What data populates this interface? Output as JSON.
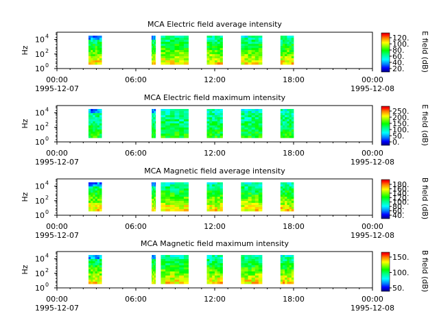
{
  "chart_data": [
    {
      "type": "heatmap",
      "title": "MCA  Electric field average intensity",
      "ylabel": "Hz",
      "y_scale": "log",
      "y_ticks": [
        {
          "base": "10",
          "exp": "0"
        },
        {
          "base": "10",
          "exp": "2"
        },
        {
          "base": "10",
          "exp": "4"
        }
      ],
      "x_ticks": [
        "00:00",
        "06:00",
        "12:00",
        "18:00",
        "00:00"
      ],
      "x_dates": [
        "1995-12-07",
        "1995-12-08"
      ],
      "colorbar_label": "E field (dB)",
      "colorbar_ticks": [
        "20.",
        "40.",
        "60.",
        "80.",
        "100.",
        "120."
      ],
      "data_blocks_hours": [
        [
          2.4,
          3.4
        ],
        [
          7.2,
          7.5
        ],
        [
          7.9,
          10.0
        ],
        [
          11.4,
          12.6
        ],
        [
          14.0,
          15.6
        ],
        [
          17.0,
          18.0
        ]
      ],
      "low_band_level": "high"
    },
    {
      "type": "heatmap",
      "title": "MCA  Electric field maximum intensity",
      "ylabel": "Hz",
      "y_scale": "log",
      "y_ticks": [
        {
          "base": "10",
          "exp": "0"
        },
        {
          "base": "10",
          "exp": "2"
        },
        {
          "base": "10",
          "exp": "4"
        }
      ],
      "x_ticks": [
        "00:00",
        "06:00",
        "12:00",
        "18:00",
        "00:00"
      ],
      "x_dates": [
        "1995-12-07",
        "1995-12-08"
      ],
      "colorbar_label": "E field (dB)",
      "colorbar_ticks": [
        "0.",
        "50.",
        "100.",
        "150.",
        "200.",
        "250."
      ],
      "data_blocks_hours": [
        [
          2.4,
          3.4
        ],
        [
          7.2,
          7.5
        ],
        [
          7.9,
          10.0
        ],
        [
          11.4,
          12.6
        ],
        [
          14.0,
          15.6
        ],
        [
          17.0,
          18.0
        ]
      ],
      "low_band_level": "mid"
    },
    {
      "type": "heatmap",
      "title": "MCA  Magnetic field average intensity",
      "ylabel": "Hz",
      "y_scale": "log",
      "y_ticks": [
        {
          "base": "10",
          "exp": "0"
        },
        {
          "base": "10",
          "exp": "2"
        },
        {
          "base": "10",
          "exp": "4"
        }
      ],
      "x_ticks": [
        "00:00",
        "06:00",
        "12:00",
        "18:00",
        "00:00"
      ],
      "x_dates": [
        "1995-12-07",
        "1995-12-08"
      ],
      "colorbar_label": "B field (dB)",
      "colorbar_ticks": [
        "40.",
        "60.",
        "80.",
        "100.",
        "120.",
        "140.",
        "160.",
        "180."
      ],
      "data_blocks_hours": [
        [
          2.4,
          3.4
        ],
        [
          7.2,
          7.5
        ],
        [
          7.9,
          10.0
        ],
        [
          11.4,
          12.6
        ],
        [
          14.0,
          15.6
        ],
        [
          17.0,
          18.0
        ]
      ],
      "low_band_level": "high"
    },
    {
      "type": "heatmap",
      "title": "MCA  Magnetic field maximum intensity",
      "ylabel": "Hz",
      "y_scale": "log",
      "y_ticks": [
        {
          "base": "10",
          "exp": "0"
        },
        {
          "base": "10",
          "exp": "2"
        },
        {
          "base": "10",
          "exp": "4"
        }
      ],
      "x_ticks": [
        "00:00",
        "06:00",
        "12:00",
        "18:00",
        "00:00"
      ],
      "x_dates": [
        "1995-12-07",
        "1995-12-08"
      ],
      "colorbar_label": "B field (dB)",
      "colorbar_ticks": [
        "50.",
        "100.",
        "150."
      ],
      "data_blocks_hours": [
        [
          2.4,
          3.4
        ],
        [
          7.2,
          7.5
        ],
        [
          7.9,
          10.0
        ],
        [
          11.4,
          12.6
        ],
        [
          14.0,
          15.6
        ],
        [
          17.0,
          18.0
        ]
      ],
      "low_band_level": "high"
    }
  ],
  "colormap": [
    "#000080",
    "#0000ff",
    "#0080ff",
    "#00ffff",
    "#00ff80",
    "#00ff00",
    "#80ff00",
    "#ffff00",
    "#ff8000",
    "#ff0000",
    "#800000"
  ]
}
